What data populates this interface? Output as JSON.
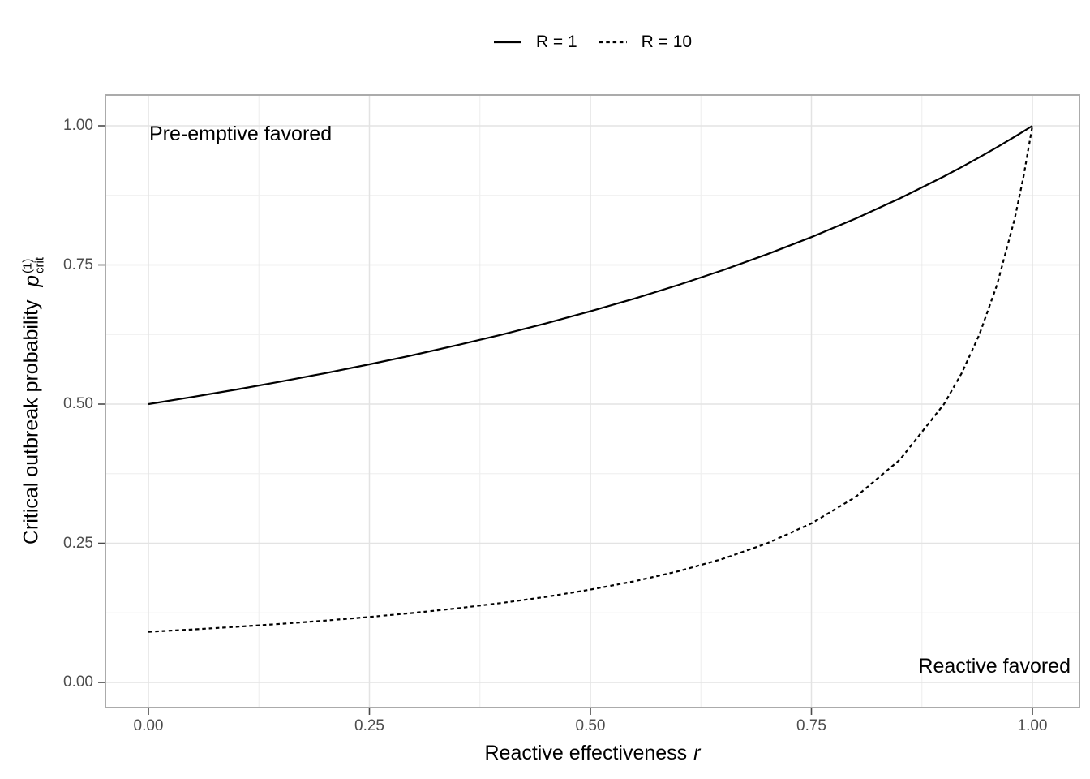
{
  "legend": {
    "entries": [
      {
        "label": "R = 1",
        "linetype": "solid"
      },
      {
        "label": "R = 10",
        "linetype": "dotted"
      }
    ],
    "position": "top"
  },
  "annotations": {
    "top_left": "Pre-emptive favored",
    "bottom_right": "Reactive favored"
  },
  "x_axis": {
    "title": "Reactive effectiveness",
    "title_symbol": "r",
    "tick_labels": [
      "0.00",
      "0.25",
      "0.50",
      "0.75",
      "1.00"
    ],
    "tick_values": [
      0,
      0.25,
      0.5,
      0.75,
      1
    ]
  },
  "y_axis": {
    "title": "Critical outbreak probability",
    "symbol": "p",
    "superscript": "(1)",
    "subscript": "crit",
    "tick_labels": [
      "0.00",
      "0.25",
      "0.50",
      "0.75",
      "1.00"
    ],
    "tick_values": [
      0,
      0.25,
      0.5,
      0.75,
      1
    ]
  },
  "chart_data": {
    "type": "line",
    "title": "",
    "xlabel": "Reactive effectiveness r",
    "ylabel": "Critical outbreak probability p_crit^(1)",
    "xlim": [
      0,
      1
    ],
    "ylim": [
      0,
      1
    ],
    "grid": true,
    "legend_position": "top",
    "x": [
      0,
      0.05,
      0.1,
      0.15,
      0.2,
      0.25,
      0.3,
      0.35,
      0.4,
      0.45,
      0.5,
      0.55,
      0.6,
      0.65,
      0.7,
      0.75,
      0.8,
      0.85,
      0.9,
      0.92,
      0.94,
      0.96,
      0.98,
      0.99,
      1
    ],
    "series": [
      {
        "name": "R = 1",
        "linetype": "solid",
        "color": "#000000",
        "values": [
          0.5,
          0.5128,
          0.5263,
          0.5405,
          0.5556,
          0.5714,
          0.5882,
          0.6061,
          0.625,
          0.6452,
          0.6667,
          0.6897,
          0.7143,
          0.7407,
          0.7692,
          0.8,
          0.8333,
          0.8696,
          0.9091,
          0.9259,
          0.9434,
          0.9615,
          0.9804,
          0.9901,
          1.0
        ]
      },
      {
        "name": "R = 10",
        "linetype": "dotted",
        "color": "#000000",
        "values": [
          0.0909,
          0.0952,
          0.1,
          0.1053,
          0.1111,
          0.1176,
          0.125,
          0.1333,
          0.1429,
          0.1538,
          0.1667,
          0.1818,
          0.2,
          0.2222,
          0.25,
          0.2857,
          0.3333,
          0.4,
          0.5,
          0.5556,
          0.625,
          0.7143,
          0.8333,
          0.9091,
          1.0
        ]
      }
    ],
    "x_major_gridlines": [
      0,
      0.25,
      0.5,
      0.75,
      1
    ],
    "x_minor_gridlines": [
      0.125,
      0.375,
      0.625,
      0.875
    ],
    "y_major_gridlines": [
      0,
      0.25,
      0.5,
      0.75,
      1
    ],
    "y_minor_gridlines": [
      0.125,
      0.375,
      0.625,
      0.875
    ],
    "colors": {
      "grid_major": "#e3e3e3",
      "grid_minor": "#f0f0f0",
      "panel_border": "#ababab",
      "tick_mark": "#4a4a4a",
      "tick_label": "#4d4d4d",
      "text": "#000000",
      "background": "#ffffff"
    }
  }
}
